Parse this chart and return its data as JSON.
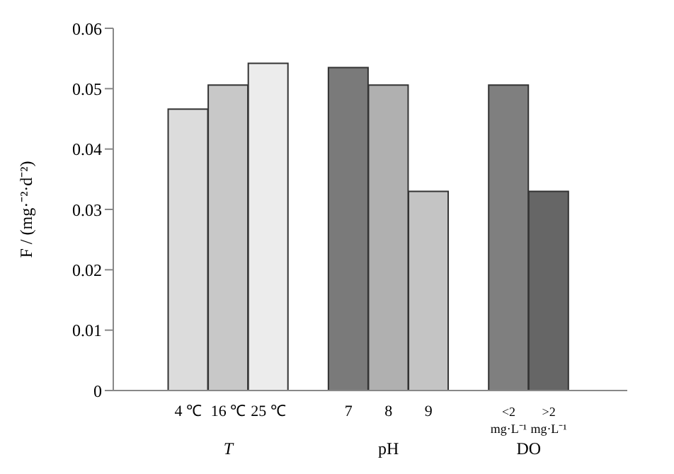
{
  "chart_data": {
    "type": "bar",
    "categories": [
      "4 ℃",
      "16 ℃",
      "25 ℃",
      "7",
      "8",
      "9",
      "<2 mg·L⁻¹",
      ">2 mg·L⁻¹"
    ],
    "values": [
      0.0466,
      0.0506,
      0.0542,
      0.0535,
      0.0506,
      0.033,
      0.0506,
      0.033
    ],
    "colors": [
      "#dcdcdc",
      "#c8c8c8",
      "#ececec",
      "#7a7a7a",
      "#b0b0b0",
      "#c4c4c4",
      "#7f7f7f",
      "#666666"
    ],
    "ylabel": "F / (mg·⁻²·d⁻²)",
    "ylim": [
      0,
      0.06
    ],
    "yticks": [
      0,
      0.01,
      0.02,
      0.03,
      0.04,
      0.05,
      0.06
    ],
    "annotations": [
      "T",
      "pH",
      "DO"
    ],
    "grid": false,
    "legend": false
  }
}
